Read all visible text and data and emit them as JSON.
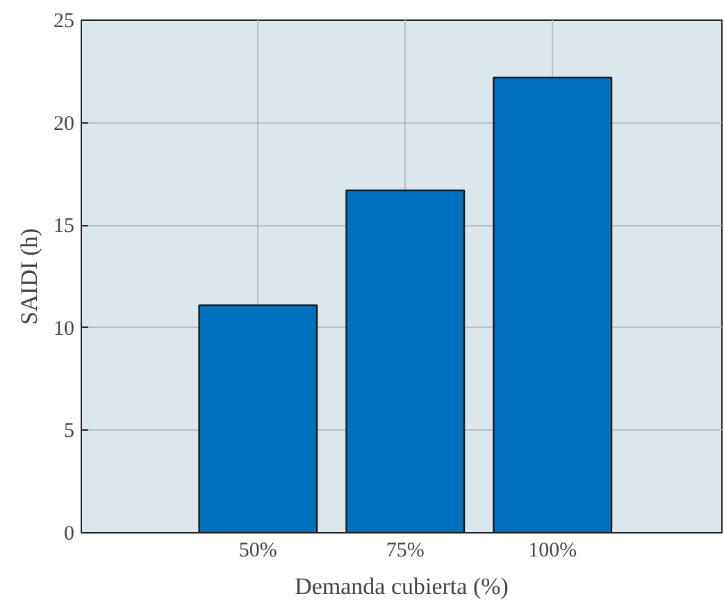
{
  "chart_data": {
    "type": "bar",
    "xlabel": "Demanda cubierta (%)",
    "ylabel": "SAIDI (h)",
    "categories": [
      "50%",
      "75%",
      "100%"
    ],
    "values": [
      11.1,
      16.7,
      22.2
    ],
    "color": "#0072bd",
    "ylim": [
      0,
      25
    ],
    "yticks": [
      0,
      5,
      10,
      15,
      20,
      25
    ],
    "grid": true
  }
}
